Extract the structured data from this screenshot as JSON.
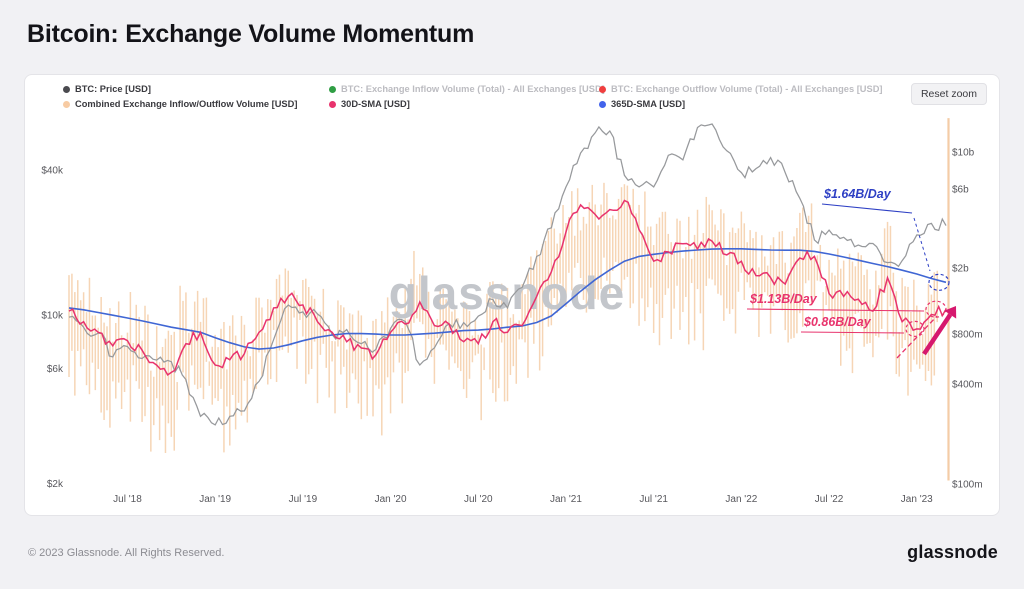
{
  "page": {
    "title": "Bitcoin: Exchange Volume Momentum",
    "reset_zoom_label": "Reset zoom",
    "watermark": "glassnode",
    "footer_copyright": "© 2023 Glassnode. All Rights Reserved.",
    "footer_brand": "glassnode"
  },
  "legend": {
    "row1": [
      {
        "label": "BTC: Price [USD]",
        "color": "#4a4a4f",
        "muted": false
      },
      {
        "label": "BTC: Exchange Inflow Volume (Total) - All Exchanges [USD]",
        "color": "#2f9e44",
        "muted": true
      },
      {
        "label": "BTC: Exchange Outflow Volume (Total) - All Exchanges [USD]",
        "color": "#f03e3e",
        "muted": true
      }
    ],
    "row2": [
      {
        "label": "Combined Exchange Inflow/Outflow Volume [USD]",
        "color": "#f7cba3",
        "muted": false
      },
      {
        "label": "30D-SMA [USD]",
        "color": "#e8336d",
        "muted": false
      },
      {
        "label": "365D-SMA [USD]",
        "color": "#4263eb",
        "muted": false
      }
    ]
  },
  "colors": {
    "price_line": "#97999c",
    "volume_band": "#f3c79d",
    "sma30": "#e8336d",
    "sma365": "#3f66d4",
    "annotation_blue": "#2d3fc4",
    "annotation_pink": "#e8336d",
    "arrow": "#d6186e",
    "watermark": "#c3c6cb",
    "axis_text": "#57575c"
  },
  "chart_data": {
    "type": "line",
    "title": "Bitcoin: Exchange Volume Momentum",
    "x_start": "2018-03",
    "x_end": "2023-03",
    "x_unit": "months since 2018-03",
    "x_ticks": [
      {
        "label": "Jul '18",
        "t": 4
      },
      {
        "label": "Jan '19",
        "t": 10
      },
      {
        "label": "Jul '19",
        "t": 16
      },
      {
        "label": "Jan '20",
        "t": 22
      },
      {
        "label": "Jul '20",
        "t": 28
      },
      {
        "label": "Jan '21",
        "t": 34
      },
      {
        "label": "Jul '21",
        "t": 40
      },
      {
        "label": "Jan '22",
        "t": 46
      },
      {
        "label": "Jul '22",
        "t": 52
      },
      {
        "label": "Jan '23",
        "t": 58
      }
    ],
    "price_axis": {
      "side": "left",
      "scale": "log",
      "unit": "USD",
      "ticks": [
        {
          "label": "$40k",
          "value": 40000
        },
        {
          "label": "$10k",
          "value": 10000
        },
        {
          "label": "$6k",
          "value": 6000
        },
        {
          "label": "$2k",
          "value": 2000
        }
      ]
    },
    "volume_axis": {
      "side": "right",
      "scale": "log",
      "unit": "USD/day",
      "ticks": [
        {
          "label": "$10b",
          "value_musd": 10000
        },
        {
          "label": "$6b",
          "value_musd": 6000
        },
        {
          "label": "$2b",
          "value_musd": 2000
        },
        {
          "label": "$800m",
          "value_musd": 800
        },
        {
          "label": "$400m",
          "value_musd": 400
        },
        {
          "label": "$100m",
          "value_musd": 100
        }
      ]
    },
    "series": {
      "price_usd": [
        9800,
        8900,
        8400,
        6700,
        7400,
        6600,
        6500,
        6400,
        5400,
        3800,
        3500,
        3800,
        4000,
        5300,
        7900,
        11000,
        10300,
        10100,
        8300,
        8700,
        7600,
        7200,
        8800,
        9400,
        6200,
        7300,
        9200,
        9300,
        9900,
        11600,
        10700,
        13000,
        17500,
        23000,
        34000,
        47000,
        57000,
        58000,
        38000,
        34000,
        34000,
        46000,
        44000,
        60000,
        62000,
        48000,
        39000,
        40500,
        45000,
        39000,
        30500,
        20500,
        22500,
        21000,
        19500,
        19800,
        16500,
        16800,
        21500,
        24000,
        23500
      ],
      "sma30_volume_musd": [
        1100,
        950,
        820,
        680,
        730,
        640,
        520,
        470,
        700,
        820,
        520,
        560,
        610,
        820,
        1150,
        1350,
        1200,
        950,
        820,
        720,
        660,
        600,
        820,
        920,
        1250,
        900,
        920,
        720,
        700,
        950,
        820,
        900,
        1350,
        1900,
        3300,
        4800,
        4200,
        4500,
        5100,
        3400,
        2200,
        2500,
        2800,
        2600,
        2900,
        2400,
        2200,
        1800,
        1750,
        1600,
        2300,
        2350,
        1400,
        1350,
        1300,
        1100,
        1750,
        950,
        860,
        1050,
        1130
      ],
      "sma365_volume_musd": [
        1150,
        1120,
        1080,
        1040,
        1000,
        960,
        920,
        880,
        850,
        820,
        760,
        710,
        670,
        650,
        660,
        690,
        730,
        765,
        790,
        805,
        805,
        800,
        790,
        790,
        800,
        810,
        825,
        840,
        845,
        860,
        880,
        895,
        940,
        1030,
        1220,
        1450,
        1700,
        1950,
        2200,
        2350,
        2420,
        2480,
        2530,
        2570,
        2600,
        2610,
        2610,
        2590,
        2570,
        2560,
        2560,
        2520,
        2430,
        2330,
        2230,
        2130,
        2040,
        1940,
        1840,
        1730,
        1640
      ],
      "volume_band_musd": [
        [
          300,
          2500
        ],
        [
          300,
          2000
        ],
        [
          250,
          1800
        ],
        [
          200,
          1500
        ],
        [
          250,
          1600
        ],
        [
          200,
          1500
        ],
        [
          180,
          1100
        ],
        [
          150,
          1000
        ],
        [
          250,
          1800
        ],
        [
          250,
          2000
        ],
        [
          180,
          1100
        ],
        [
          180,
          1200
        ],
        [
          200,
          1300
        ],
        [
          300,
          1800
        ],
        [
          400,
          2500
        ],
        [
          500,
          3000
        ],
        [
          450,
          2800
        ],
        [
          350,
          2000
        ],
        [
          300,
          1800
        ],
        [
          280,
          1600
        ],
        [
          250,
          1400
        ],
        [
          230,
          1300
        ],
        [
          300,
          1700
        ],
        [
          350,
          2000
        ],
        [
          450,
          3000
        ],
        [
          350,
          2000
        ],
        [
          350,
          2000
        ],
        [
          280,
          1500
        ],
        [
          280,
          1600
        ],
        [
          350,
          2000
        ],
        [
          320,
          1800
        ],
        [
          350,
          2200
        ],
        [
          500,
          3200
        ],
        [
          700,
          4500
        ],
        [
          900,
          7000
        ],
        [
          1000,
          7500
        ],
        [
          1100,
          7800
        ],
        [
          1100,
          8000
        ],
        [
          1200,
          9000
        ],
        [
          1000,
          7000
        ],
        [
          700,
          4800
        ],
        [
          750,
          5200
        ],
        [
          800,
          5600
        ],
        [
          750,
          5400
        ],
        [
          800,
          6000
        ],
        [
          700,
          5200
        ],
        [
          850,
          5000
        ],
        [
          700,
          4200
        ],
        [
          650,
          4000
        ],
        [
          600,
          3800
        ],
        [
          850,
          5200
        ],
        [
          900,
          5500
        ],
        [
          550,
          3200
        ],
        [
          500,
          3000
        ],
        [
          500,
          2900
        ],
        [
          420,
          2500
        ],
        [
          700,
          4500
        ],
        [
          350,
          2000
        ],
        [
          330,
          1900
        ],
        [
          430,
          2500
        ],
        [
          105,
          16000
        ]
      ]
    },
    "annotations": [
      {
        "text": "$1.64B/Day",
        "series": "365D-SMA [USD]",
        "value_musd": 1640
      },
      {
        "text": "$1.13B/Day",
        "series": "30D-SMA [USD]",
        "value_musd": 1130
      },
      {
        "text": "$0.86B/Day",
        "series": "30D-SMA [USD]",
        "value_musd": 860
      }
    ],
    "legend_position": "top",
    "grid": false
  }
}
